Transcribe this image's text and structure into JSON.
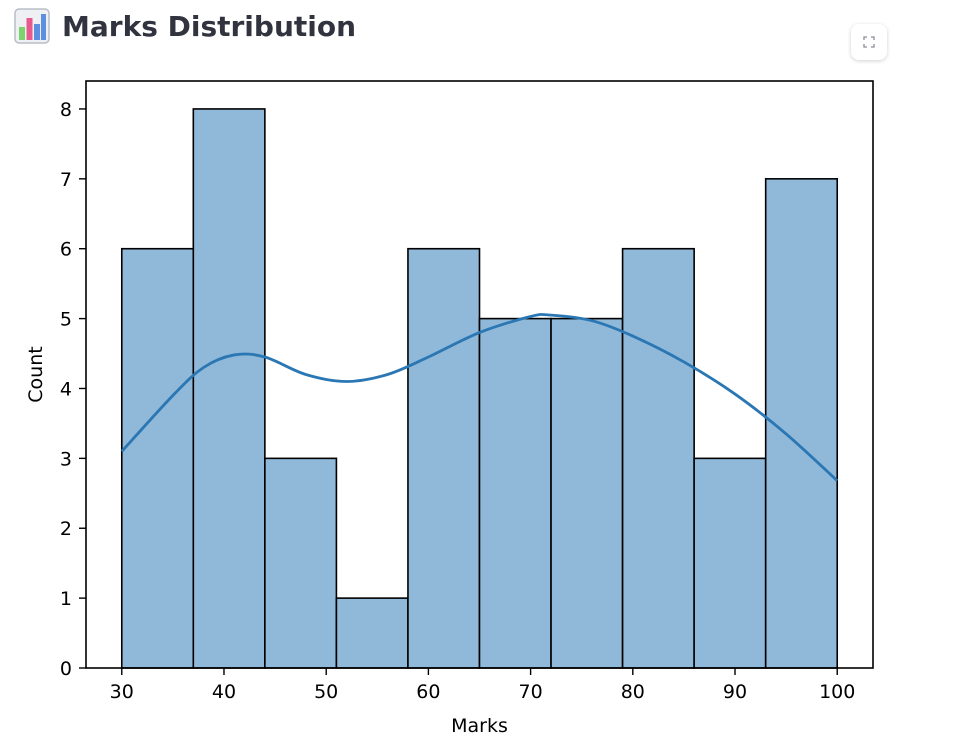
{
  "header": {
    "title": "Marks Distribution",
    "icon": "bar-chart-icon"
  },
  "toolbar": {
    "fullscreen_icon": "fullscreen-icon"
  },
  "chart_data": {
    "type": "bar",
    "subtype": "histogram-with-kde",
    "title": "",
    "xlabel": "Marks",
    "ylabel": "Count",
    "bin_edges": [
      30,
      37,
      44,
      51,
      58,
      65,
      72,
      79,
      86,
      93,
      100
    ],
    "values": [
      6,
      8,
      3,
      1,
      6,
      5,
      5,
      6,
      3,
      7
    ],
    "xlim": [
      26.5,
      103.5
    ],
    "ylim": [
      0,
      8.4
    ],
    "xticks": [
      30,
      40,
      50,
      60,
      70,
      80,
      90,
      100
    ],
    "yticks": [
      0,
      1,
      2,
      3,
      4,
      5,
      6,
      7,
      8
    ],
    "grid": false,
    "bar_fill": "#8fb8d9",
    "bar_edge": "#000000",
    "kde_color": "#2a77b4",
    "kde": {
      "x": [
        30,
        35,
        38,
        41,
        44,
        48,
        52,
        56,
        60,
        65,
        70,
        72,
        76,
        80,
        85,
        90,
        95,
        100
      ],
      "y": [
        3.1,
        3.9,
        4.3,
        4.48,
        4.45,
        4.2,
        4.1,
        4.2,
        4.45,
        4.8,
        5.03,
        5.05,
        4.97,
        4.75,
        4.38,
        3.92,
        3.35,
        2.68
      ]
    }
  }
}
